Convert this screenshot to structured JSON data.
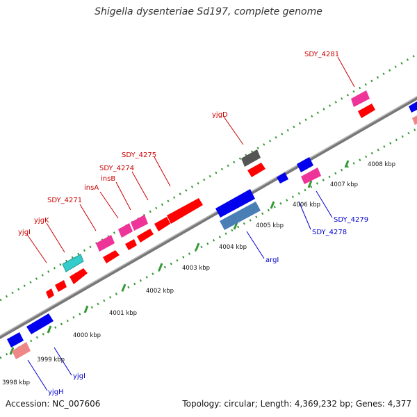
{
  "title": "Shigella dysenteriae Sd197, complete genome",
  "footer": {
    "accession": "Accession: NC_007606",
    "summary": "Topology: circular; Length: 4,369,232 bp; Genes: 4,377"
  },
  "colors": {
    "plus_label": "#cc0000",
    "minus_label": "#0000cc",
    "red": "#ff0000",
    "magenta": "#ee3399",
    "cyan": "#33cccc",
    "blue": "#0000ee",
    "salmon": "#ee8888",
    "steel": "#4a7fb5",
    "gray": "#666666",
    "ticks": "#339933",
    "backbone": "#888888"
  },
  "scale_labels": [
    "3998 kbp",
    "3999 kbp",
    "4000 kbp",
    "4001 kbp",
    "4002 kbp",
    "4003 kbp",
    "4004 kbp",
    "4005 kbp",
    "4006 kbp",
    "4007 kbp",
    "4008 kbp"
  ],
  "gene_labels_plus": [
    "yjgI",
    "yjgK",
    "SDY_4271",
    "insA",
    "insB",
    "SDY_4274",
    "SDY_4275",
    "yjgD",
    "SDY_4281"
  ],
  "gene_labels_minus": [
    "yjgH",
    "yjgI",
    "argI",
    "SDY_4278",
    "SDY_4279"
  ]
}
